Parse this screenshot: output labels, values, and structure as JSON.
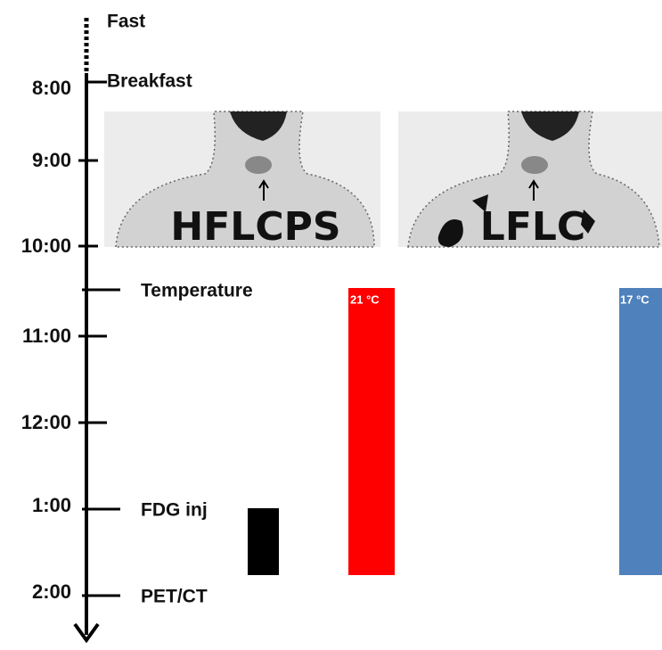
{
  "timeline": {
    "events": {
      "fast": "Fast",
      "breakfast": "Breakfast",
      "temperature": "Temperature",
      "fdg": "FDG inj",
      "pet": "PET/CT"
    },
    "times": [
      "8:00",
      "9:00",
      "10:00",
      "11:00",
      "12:00",
      "1:00",
      "2:00"
    ]
  },
  "panels": [
    {
      "label": "HFLCPS",
      "temperature": "21 °C"
    },
    {
      "label": "LFLC",
      "temperature": "17 °C"
    }
  ]
}
